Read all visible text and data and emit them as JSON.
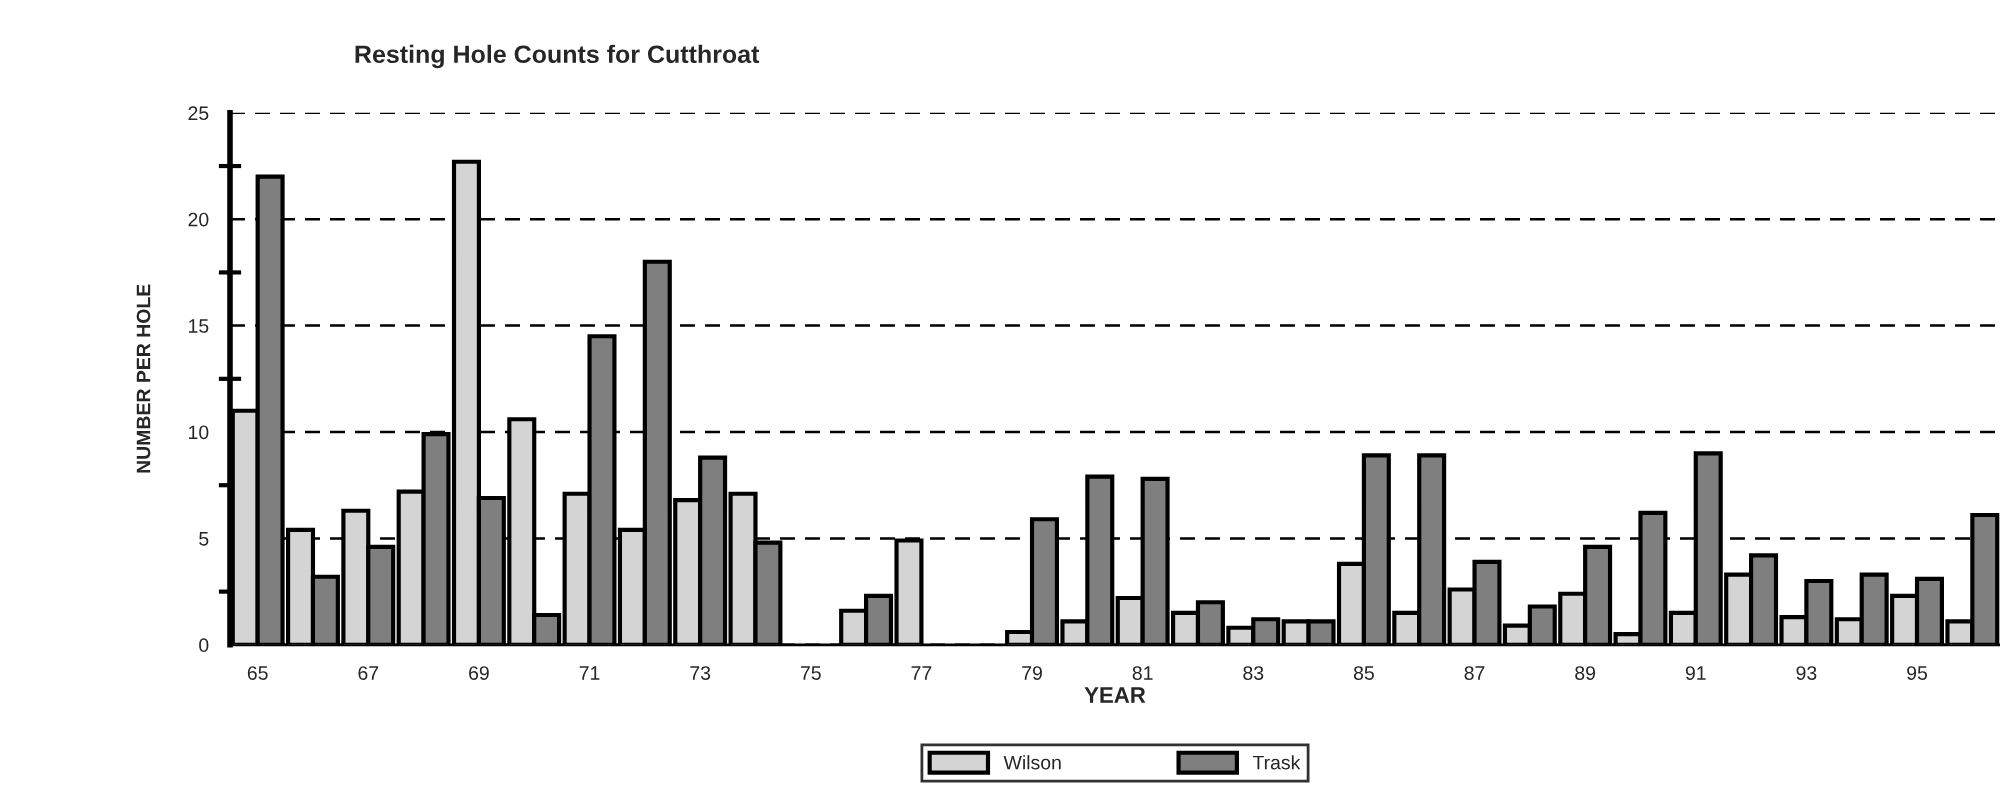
{
  "chart_data": {
    "type": "bar",
    "title": "Resting Hole Counts for Cutthroat",
    "xlabel": "YEAR",
    "ylabel": "NUMBER PER HOLE",
    "categories": [
      "65",
      null,
      "67",
      null,
      "69",
      null,
      "71",
      null,
      "73",
      null,
      "75",
      null,
      "77",
      null,
      "79",
      null,
      "81",
      null,
      "83",
      null,
      "85",
      null,
      "87",
      null,
      "89",
      null,
      "91",
      null,
      "93",
      null,
      "95",
      null
    ],
    "series": [
      {
        "name": "Wilson",
        "color": "#d4d4d4",
        "values": [
          11.0,
          5.4,
          6.3,
          7.2,
          22.7,
          10.6,
          7.1,
          5.4,
          6.8,
          7.1,
          null,
          1.6,
          4.9,
          null,
          0.6,
          1.1,
          2.2,
          1.5,
          0.8,
          1.1,
          3.8,
          1.5,
          2.6,
          0.9,
          2.4,
          0.5,
          1.5,
          3.3,
          1.3,
          1.2,
          2.3,
          1.1
        ]
      },
      {
        "name": "Trask",
        "color": "#7f7f7f",
        "values": [
          22.0,
          3.2,
          4.6,
          9.9,
          6.9,
          1.4,
          14.5,
          18.0,
          8.8,
          4.8,
          null,
          2.3,
          null,
          null,
          5.9,
          7.9,
          7.8,
          2.0,
          1.2,
          1.1,
          8.9,
          8.9,
          3.9,
          1.8,
          4.6,
          6.2,
          9.0,
          4.2,
          3.0,
          3.3,
          3.1,
          6.1
        ]
      }
    ],
    "ylim": [
      0,
      25
    ],
    "yticks": [
      0,
      {
        "value": 2.5,
        "label": null
      },
      5,
      {
        "value": 7.5,
        "label": null
      },
      10,
      {
        "value": 12.5,
        "label": null
      },
      15,
      {
        "value": 17.5,
        "label": null
      },
      20,
      {
        "value": 22.5,
        "label": null
      },
      25
    ],
    "grid": "y",
    "legend": "bottom"
  }
}
